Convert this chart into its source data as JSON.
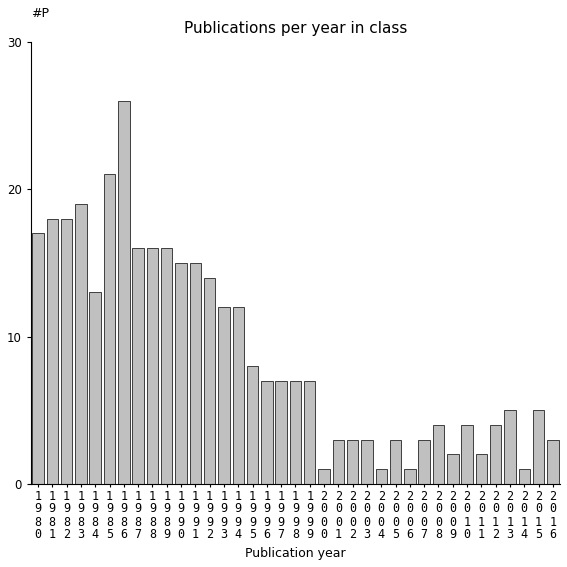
{
  "title": "Publications per year in class",
  "xlabel": "Publication year",
  "ylabel": "#P",
  "years": [
    "1980",
    "1981",
    "1982",
    "1983",
    "1984",
    "1985",
    "1986",
    "1987",
    "1988",
    "1989",
    "1990",
    "1991",
    "1992",
    "1993",
    "1994",
    "1995",
    "1996",
    "1997",
    "1998",
    "1999",
    "2000",
    "2001",
    "2002",
    "2003",
    "2004",
    "2005",
    "2006",
    "2007",
    "2008",
    "2009",
    "2010",
    "2011",
    "2012",
    "2013",
    "2014",
    "2015",
    "2016"
  ],
  "values": [
    17,
    18,
    18,
    19,
    13,
    21,
    26,
    16,
    16,
    16,
    15,
    15,
    14,
    12,
    12,
    8,
    7,
    7,
    7,
    7,
    1,
    3,
    3,
    3,
    1,
    3,
    1,
    3,
    4,
    2,
    4,
    2,
    4,
    5,
    1,
    5,
    3
  ],
  "bar_color": "#c0c0c0",
  "bar_edge_color": "#000000",
  "ylim": [
    0,
    30
  ],
  "yticks": [
    0,
    10,
    20,
    30
  ],
  "title_fontsize": 11,
  "label_fontsize": 9,
  "tick_fontsize": 8.5
}
